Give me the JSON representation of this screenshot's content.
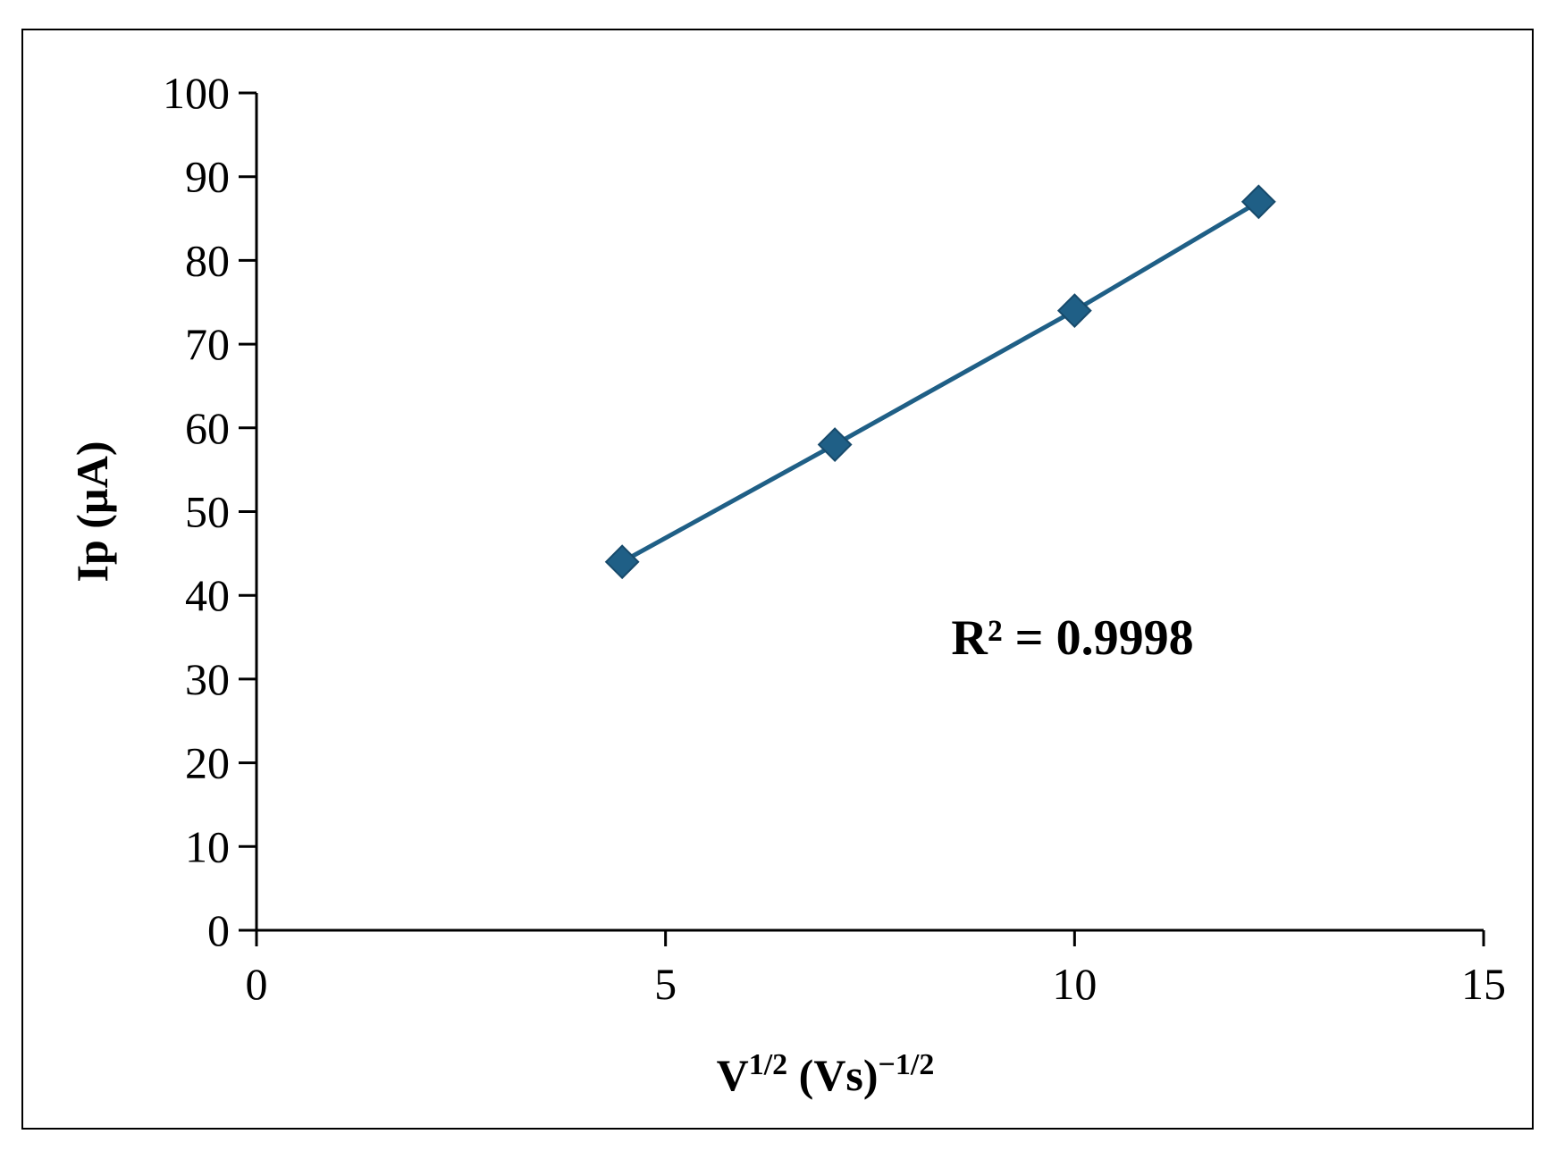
{
  "chart_data": {
    "type": "scatter",
    "title": "",
    "xlabel": {
      "base": "V",
      "sup1": "1/2",
      "mid": " (Vs)",
      "sup2": "−1/2"
    },
    "ylabel": "Ip (µA)",
    "xlim": [
      0,
      15
    ],
    "ylim": [
      0,
      100
    ],
    "xticks": [
      0,
      5,
      10,
      15
    ],
    "yticks": [
      0,
      10,
      20,
      30,
      40,
      50,
      60,
      70,
      80,
      90,
      100
    ],
    "grid": false,
    "legend": "none",
    "series": [
      {
        "x": [
          4.47,
          7.07,
          10.0,
          12.25
        ],
        "y": [
          44,
          58,
          74,
          87
        ],
        "marker": "diamond",
        "line": true,
        "color": "#1f5f86"
      }
    ],
    "annotation": "R² = 0.9998"
  }
}
